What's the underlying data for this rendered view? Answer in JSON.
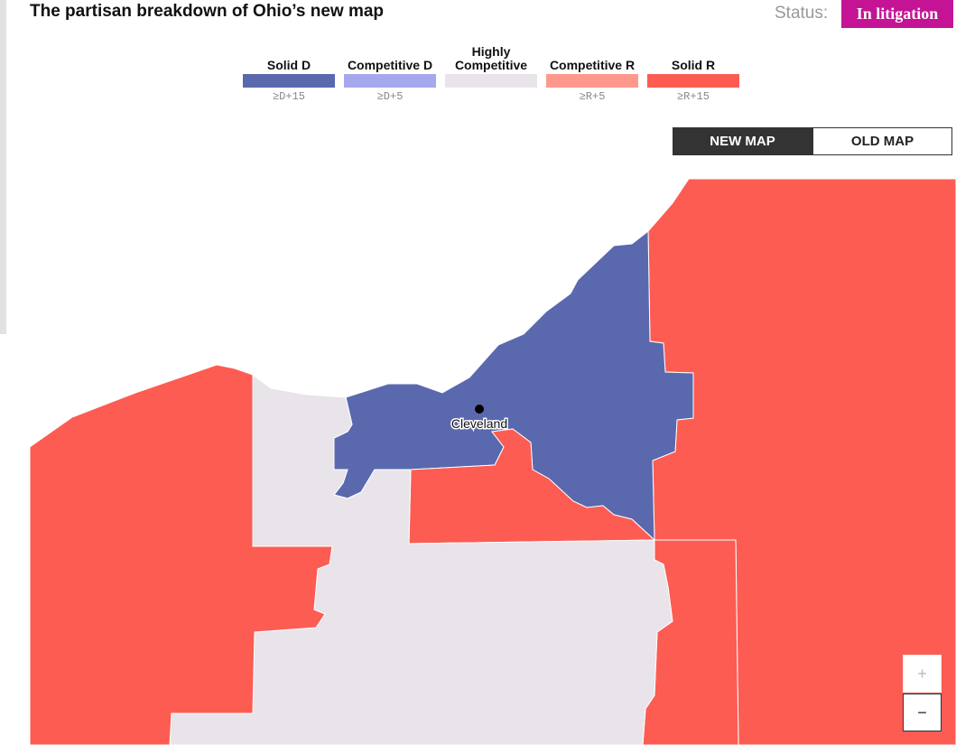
{
  "header": {
    "title": "The partisan breakdown of Ohio’s new map",
    "status_label": "Status:",
    "status_value": "In litigation"
  },
  "legend": {
    "items": [
      {
        "label": "Solid D",
        "range": "≥D+15",
        "color": "#5a69ae"
      },
      {
        "label": "Competitive D",
        "range": "≥D+5",
        "color": "#a5a8ec"
      },
      {
        "label": "Highly Competitive",
        "color": "#e9e3ea"
      },
      {
        "label": "Competitive R",
        "range": "≥R+5",
        "color": "#fd998c"
      },
      {
        "label": "Solid R",
        "range": "≥R+15",
        "color": "#fd5c53"
      }
    ]
  },
  "toggle": {
    "buttons": [
      "NEW MAP",
      "OLD MAP"
    ]
  },
  "map": {
    "cities": [
      {
        "label": "Cleveland"
      }
    ],
    "zoom_in": "+",
    "zoom_out": "−"
  }
}
